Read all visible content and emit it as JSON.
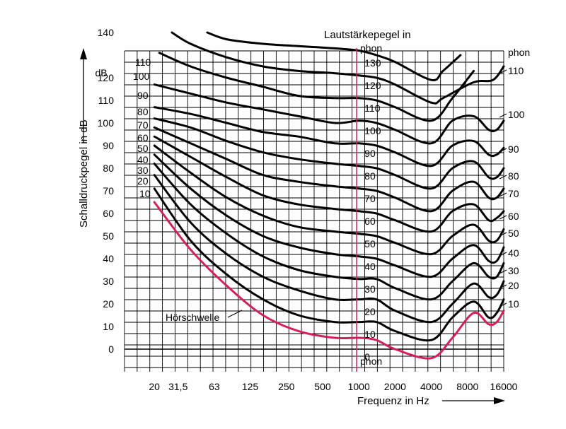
{
  "chart_data": {
    "type": "line",
    "xlabel": "Frequenz in Hz",
    "ylabel": "Schalldruckpegel in dB",
    "y_unit": "dB",
    "center_title": "Lautstärkepegel in",
    "phon_unit": "phon",
    "x_scale": "log",
    "x_ticks": [
      {
        "label": "20",
        "value": 20
      },
      {
        "label": "31,5",
        "value": 31.5
      },
      {
        "label": "63",
        "value": 63
      },
      {
        "label": "125",
        "value": 125
      },
      {
        "label": "250",
        "value": 250
      },
      {
        "label": "500",
        "value": 500
      },
      {
        "label": "1000",
        "value": 1000
      },
      {
        "label": "2000",
        "value": 2000
      },
      {
        "label": "4000",
        "value": 4000
      },
      {
        "label": "8000",
        "value": 8000
      },
      {
        "label": "16000",
        "value": 16000
      }
    ],
    "y_ticks": [
      "140",
      "120",
      "110",
      "100",
      "90",
      "80",
      "70",
      "60",
      "50",
      "40",
      "30",
      "20",
      "10",
      "0"
    ],
    "ylim": [
      -10,
      140
    ],
    "xlim": [
      11.3,
      16000
    ],
    "grid": true,
    "threshold_label": "Hörschwelle",
    "colors": {
      "curves": "#000000",
      "threshold": "#d41f5a",
      "ref_line": "#d41f5a"
    },
    "phon_labels_left": [
      "110",
      "100",
      "90",
      "80",
      "70",
      "60",
      "50",
      "40",
      "30",
      "20",
      "10"
    ],
    "phon_labels_center": [
      "130",
      "120",
      "110",
      "100",
      "90",
      "80",
      "70",
      "60",
      "50",
      "40",
      "30",
      "20",
      "10",
      "0"
    ],
    "phon_labels_right": [
      "110",
      "100",
      "90",
      "80",
      "70",
      "60",
      "50",
      "40",
      "30",
      "20",
      "10"
    ],
    "series": [
      {
        "name": "10",
        "points": [
          [
            20,
            71
          ],
          [
            40,
            48
          ],
          [
            80,
            33
          ],
          [
            160,
            22
          ],
          [
            315,
            15
          ],
          [
            630,
            12
          ],
          [
            1000,
            12
          ],
          [
            1400,
            12
          ],
          [
            2000,
            8
          ],
          [
            4000,
            4
          ],
          [
            6000,
            14
          ],
          [
            9000,
            21
          ],
          [
            12000,
            14
          ],
          [
            14000,
            16
          ],
          [
            16000,
            22
          ]
        ]
      },
      {
        "name": "20",
        "points": [
          [
            20,
            77
          ],
          [
            40,
            56
          ],
          [
            80,
            42
          ],
          [
            160,
            32
          ],
          [
            315,
            26
          ],
          [
            630,
            22
          ],
          [
            1000,
            22
          ],
          [
            1400,
            22
          ],
          [
            2000,
            17
          ],
          [
            4000,
            12
          ],
          [
            6000,
            20
          ],
          [
            9000,
            29
          ],
          [
            12000,
            23
          ],
          [
            14000,
            24
          ],
          [
            16000,
            30
          ]
        ]
      },
      {
        "name": "30",
        "points": [
          [
            20,
            82
          ],
          [
            40,
            64
          ],
          [
            80,
            51
          ],
          [
            160,
            41
          ],
          [
            315,
            35
          ],
          [
            630,
            32
          ],
          [
            1000,
            31
          ],
          [
            1400,
            31
          ],
          [
            2000,
            27
          ],
          [
            4000,
            22
          ],
          [
            6000,
            30
          ],
          [
            9000,
            38
          ],
          [
            12000,
            32
          ],
          [
            14000,
            32
          ],
          [
            16000,
            38
          ]
        ]
      },
      {
        "name": "40",
        "points": [
          [
            20,
            86
          ],
          [
            40,
            71
          ],
          [
            80,
            59
          ],
          [
            160,
            50
          ],
          [
            315,
            45
          ],
          [
            630,
            42
          ],
          [
            1000,
            41
          ],
          [
            1400,
            40
          ],
          [
            2000,
            37
          ],
          [
            4000,
            32
          ],
          [
            6000,
            40
          ],
          [
            9000,
            46
          ],
          [
            12000,
            39
          ],
          [
            14000,
            39
          ],
          [
            16000,
            45
          ]
        ]
      },
      {
        "name": "50",
        "points": [
          [
            20,
            90
          ],
          [
            40,
            78
          ],
          [
            80,
            67
          ],
          [
            160,
            59
          ],
          [
            315,
            54
          ],
          [
            630,
            52
          ],
          [
            1000,
            51
          ],
          [
            1400,
            50
          ],
          [
            2000,
            47
          ],
          [
            4000,
            42
          ],
          [
            6000,
            50
          ],
          [
            9000,
            55
          ],
          [
            12000,
            48
          ],
          [
            14000,
            48
          ],
          [
            16000,
            53
          ]
        ]
      },
      {
        "name": "60",
        "points": [
          [
            20,
            94
          ],
          [
            40,
            85
          ],
          [
            80,
            76
          ],
          [
            160,
            68
          ],
          [
            315,
            64
          ],
          [
            630,
            62
          ],
          [
            1000,
            61
          ],
          [
            1400,
            60
          ],
          [
            2000,
            57
          ],
          [
            4000,
            52
          ],
          [
            6000,
            61
          ],
          [
            9000,
            64
          ],
          [
            12000,
            57
          ],
          [
            14000,
            58
          ],
          [
            16000,
            61
          ]
        ]
      },
      {
        "name": "70",
        "points": [
          [
            20,
            98
          ],
          [
            40,
            91
          ],
          [
            80,
            84
          ],
          [
            160,
            77
          ],
          [
            315,
            74
          ],
          [
            630,
            72
          ],
          [
            1000,
            71
          ],
          [
            1400,
            70
          ],
          [
            2000,
            67
          ],
          [
            4000,
            61
          ],
          [
            6000,
            70
          ],
          [
            9000,
            74
          ],
          [
            12000,
            67
          ],
          [
            14000,
            67
          ],
          [
            16000,
            71
          ]
        ]
      },
      {
        "name": "80",
        "points": [
          [
            20,
            102
          ],
          [
            40,
            98
          ],
          [
            80,
            92
          ],
          [
            160,
            87
          ],
          [
            315,
            84
          ],
          [
            630,
            82
          ],
          [
            1000,
            81
          ],
          [
            1400,
            80
          ],
          [
            2000,
            77
          ],
          [
            4000,
            71
          ],
          [
            6000,
            80
          ],
          [
            9000,
            83
          ],
          [
            12000,
            76
          ],
          [
            14000,
            76
          ],
          [
            16000,
            80
          ]
        ]
      },
      {
        "name": "90",
        "points": [
          [
            20,
            107
          ],
          [
            40,
            104
          ],
          [
            80,
            100
          ],
          [
            160,
            96
          ],
          [
            315,
            94
          ],
          [
            630,
            91
          ],
          [
            1000,
            91
          ],
          [
            1400,
            90
          ],
          [
            2000,
            87
          ],
          [
            4000,
            81
          ],
          [
            6000,
            90
          ],
          [
            9000,
            92
          ],
          [
            12000,
            86
          ],
          [
            14000,
            86
          ],
          [
            16000,
            89
          ]
        ]
      },
      {
        "name": "100",
        "points": [
          [
            20,
            117
          ],
          [
            40,
            113
          ],
          [
            80,
            109
          ],
          [
            160,
            106
          ],
          [
            315,
            103
          ],
          [
            630,
            100
          ],
          [
            1000,
            101
          ],
          [
            1400,
            100
          ],
          [
            2000,
            97
          ],
          [
            4000,
            91
          ],
          [
            6000,
            101
          ],
          [
            9000,
            103
          ],
          [
            12000,
            97
          ],
          [
            14000,
            97
          ],
          [
            16000,
            101
          ]
        ]
      },
      {
        "name": "110",
        "points": [
          [
            22,
            131
          ],
          [
            40,
            125
          ],
          [
            80,
            120
          ],
          [
            160,
            116
          ],
          [
            315,
            112
          ],
          [
            630,
            111
          ],
          [
            1000,
            111
          ],
          [
            1400,
            110
          ],
          [
            2000,
            107
          ],
          [
            4000,
            101
          ],
          [
            6000,
            111
          ],
          [
            9000,
            123
          ]
        ]
      },
      {
        "name": "120",
        "points": [
          [
            28,
            140
          ],
          [
            40,
            135
          ],
          [
            80,
            129
          ],
          [
            160,
            125
          ],
          [
            315,
            123
          ],
          [
            630,
            122
          ],
          [
            1000,
            121
          ],
          [
            1400,
            120
          ],
          [
            2000,
            117
          ],
          [
            4000,
            109
          ],
          [
            5000,
            111
          ],
          [
            9000,
            118
          ],
          [
            13000,
            119
          ],
          [
            16000,
            125
          ]
        ]
      },
      {
        "name": "130",
        "points": [
          [
            55,
            140
          ],
          [
            80,
            137
          ],
          [
            160,
            135
          ],
          [
            315,
            134
          ],
          [
            630,
            133
          ],
          [
            1000,
            132
          ],
          [
            1400,
            130
          ],
          [
            2000,
            127
          ],
          [
            4000,
            119
          ],
          [
            5000,
            123
          ],
          [
            7000,
            130
          ]
        ]
      },
      {
        "name": "Hörschwelle",
        "threshold": true,
        "points": [
          [
            20,
            65
          ],
          [
            40,
            44
          ],
          [
            80,
            28
          ],
          [
            160,
            15
          ],
          [
            315,
            8
          ],
          [
            630,
            5
          ],
          [
            1000,
            5
          ],
          [
            1400,
            4
          ],
          [
            2000,
            0
          ],
          [
            4000,
            -4
          ],
          [
            6000,
            5
          ],
          [
            9000,
            16
          ],
          [
            12000,
            11
          ],
          [
            14000,
            12
          ],
          [
            16000,
            17
          ]
        ]
      }
    ]
  }
}
